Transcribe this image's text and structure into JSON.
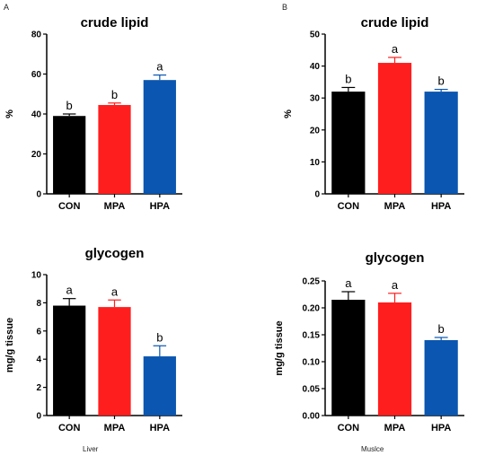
{
  "panel_labels": {
    "a": "A",
    "b": "B"
  },
  "captions": {
    "liver": "Liver",
    "muscle": "Muslce"
  },
  "colors": {
    "CON": "#000000",
    "MPA": "#ff1e1e",
    "HPA": "#0a56b0",
    "axis": "#000000"
  },
  "chart_data": [
    {
      "id": "liver-lipid",
      "type": "bar",
      "title": "crude lipid",
      "ylabel": "%",
      "xlabel": "",
      "categories": [
        "CON",
        "MPA",
        "HPA"
      ],
      "values": [
        39,
        44.5,
        57
      ],
      "errors": [
        1,
        1,
        2.5
      ],
      "letters": [
        "b",
        "b",
        "a"
      ],
      "ylim": [
        0,
        80
      ],
      "yticks": [
        "0",
        "20",
        "40",
        "60",
        "80"
      ],
      "grid": false,
      "legend": "none"
    },
    {
      "id": "muscle-lipid",
      "type": "bar",
      "title": "crude lipid",
      "ylabel": "%",
      "xlabel": "",
      "categories": [
        "CON",
        "MPA",
        "HPA"
      ],
      "values": [
        32,
        41,
        32
      ],
      "errors": [
        1.3,
        1.7,
        0.7
      ],
      "letters": [
        "b",
        "a",
        "b"
      ],
      "ylim": [
        0,
        50
      ],
      "yticks": [
        "0",
        "10",
        "20",
        "30",
        "40",
        "50"
      ],
      "grid": false,
      "legend": "none"
    },
    {
      "id": "liver-glycogen",
      "type": "bar",
      "title": "glycogen",
      "ylabel": "mg/g tissue",
      "xlabel": "",
      "categories": [
        "CON",
        "MPA",
        "HPA"
      ],
      "values": [
        7.8,
        7.7,
        4.2
      ],
      "errors": [
        0.5,
        0.5,
        0.75
      ],
      "letters": [
        "a",
        "a",
        "b"
      ],
      "ylim": [
        0,
        10
      ],
      "yticks": [
        "0",
        "2",
        "4",
        "6",
        "8",
        "10"
      ],
      "grid": false,
      "legend": "none"
    },
    {
      "id": "muscle-glycogen",
      "type": "bar",
      "title": "glycogen",
      "ylabel": "mg/g tissue",
      "xlabel": "",
      "categories": [
        "CON",
        "MPA",
        "HPA"
      ],
      "values": [
        0.215,
        0.21,
        0.14
      ],
      "errors": [
        0.015,
        0.017,
        0.005
      ],
      "letters": [
        "a",
        "a",
        "b"
      ],
      "ylim": [
        0,
        0.25
      ],
      "yticks": [
        "0.00",
        "0.05",
        "0.10",
        "0.15",
        "0.20",
        "0.25"
      ],
      "grid": false,
      "legend": "none"
    }
  ]
}
